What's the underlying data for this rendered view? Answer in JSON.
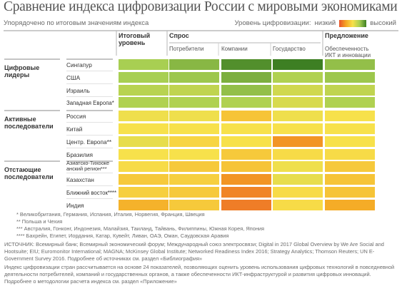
{
  "title": "Сравнение индекса цифровизации России с мировыми экономиками",
  "subtitle": "Упорядочено по итоговым значениям индекса",
  "legend": {
    "label": "Уровень цифровизации:",
    "low": "низкий",
    "high": "высокий",
    "colors": [
      "#e8532a",
      "#f5a623",
      "#f7e14b",
      "#a8cf52",
      "#3d7f23"
    ]
  },
  "chart_data": {
    "type": "heatmap",
    "groups": [
      {
        "label": "Цифровые лидеры",
        "rows": [
          "Сингапур",
          "США",
          "Израиль",
          "Западная Европа*"
        ]
      },
      {
        "label": "Активные последователи",
        "rows": [
          "Россия",
          "Китай",
          "Центр. Европа**",
          "Бразилия"
        ]
      },
      {
        "label": "Отстающие последователи",
        "rows": [
          "Азиатско-Тихоокеанский регион***",
          "Казахстан",
          "Ближний восток****",
          "Индия"
        ]
      }
    ],
    "column_groups": [
      {
        "label": "Итоговый уровень",
        "columns": [
          ""
        ]
      },
      {
        "label": "Спрос",
        "columns": [
          "Потребители",
          "Компании",
          "Государство"
        ]
      },
      {
        "label": "Предложение",
        "columns": [
          "Обеспеченность ИКТ и инновации"
        ]
      }
    ],
    "scale": "1 = низкий, 5 = высокий",
    "values": [
      [
        4.0,
        4.3,
        4.8,
        5.0,
        4.2
      ],
      [
        4.0,
        4.1,
        4.4,
        3.9,
        4.1
      ],
      [
        3.8,
        3.7,
        4.2,
        3.5,
        3.7
      ],
      [
        3.9,
        3.9,
        3.9,
        3.4,
        3.9
      ],
      [
        3.1,
        3.1,
        2.5,
        3.1,
        3.0
      ],
      [
        3.0,
        3.0,
        3.0,
        3.0,
        3.0
      ],
      [
        3.2,
        2.8,
        3.0,
        1.8,
        3.0
      ],
      [
        3.0,
        3.0,
        2.6,
        2.9,
        2.9
      ],
      [
        2.9,
        2.6,
        2.5,
        3.1,
        2.6
      ],
      [
        2.6,
        2.7,
        1.8,
        3.2,
        2.5
      ],
      [
        2.7,
        2.6,
        1.6,
        2.9,
        2.5
      ],
      [
        2.2,
        2.6,
        1.5,
        2.9,
        2.1
      ]
    ]
  },
  "footnotes": [
    "* Великобритания, Германия, Испания, Италия, Норвегия, Франция, Швеция",
    "** Польша и Чехия",
    "*** Австралия, Гонконг, Индонезия, Малайзия, Таиланд, Тайвань, Филиппины, Южная Корея, Япония",
    "**** Бахрейн, Египет, Иордания, Катар, Кувейт, Ливан, ОАЭ, Оман, Саудовская Аравия"
  ],
  "source": "ИСТОЧНИК: Всемирный банк; Всемирный экономический форум; Международный союз электросвязи; Digital in 2017 Global Overview by We Are Social and Hootsuite; EIU; Euromonitor International; MAGNA; McKinsey Global Institute; Networked Readiness Index 2016; Strategy Analytics; Thomson Reuters; UN E-Government Survey 2016. Подробнее об источниках см. раздел «Библиография»",
  "method": "Индекс цифровизации стран рассчитывается на основе 24 показателей, позволяющих оценить уровень использования цифровых технологий в повседневной деятельности потребителей, компаний и государственных органов, а также обеспеченности ИКТ-инфраструктурой и развития цифровых инноваций. Подробнее о методологии расчета индекса см. раздел «Приложение»"
}
